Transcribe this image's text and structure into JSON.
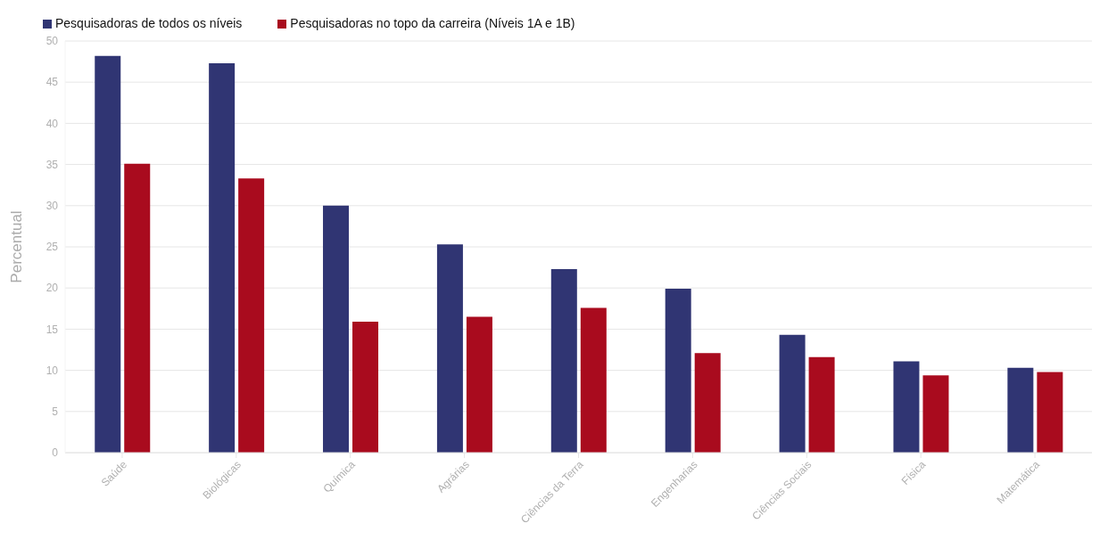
{
  "chart_data": {
    "type": "bar",
    "categories": [
      "Saúde",
      "Biológicas",
      "Química",
      "Agrárias",
      "Ciências da Terra",
      "Engenharias",
      "Ciências Sociais",
      "Física",
      "Matemática"
    ],
    "series": [
      {
        "name": "Pesquisadoras de todos os níveis",
        "color": "#303573",
        "values": [
          48.2,
          47.3,
          30.0,
          25.3,
          22.3,
          19.9,
          14.3,
          11.1,
          10.3
        ]
      },
      {
        "name": "Pesquisadoras no topo da carreira (Níveis 1A e 1B)",
        "color": "#a90b1e",
        "values": [
          35.1,
          33.3,
          15.9,
          16.5,
          17.6,
          12.1,
          11.6,
          9.4,
          9.8
        ]
      }
    ],
    "ylabel": "Percentual",
    "ylim": [
      0,
      50
    ],
    "yticks": [
      0,
      5,
      10,
      15,
      20,
      25,
      30,
      35,
      40,
      45,
      50
    ],
    "grid": "y",
    "legend": "top left"
  }
}
